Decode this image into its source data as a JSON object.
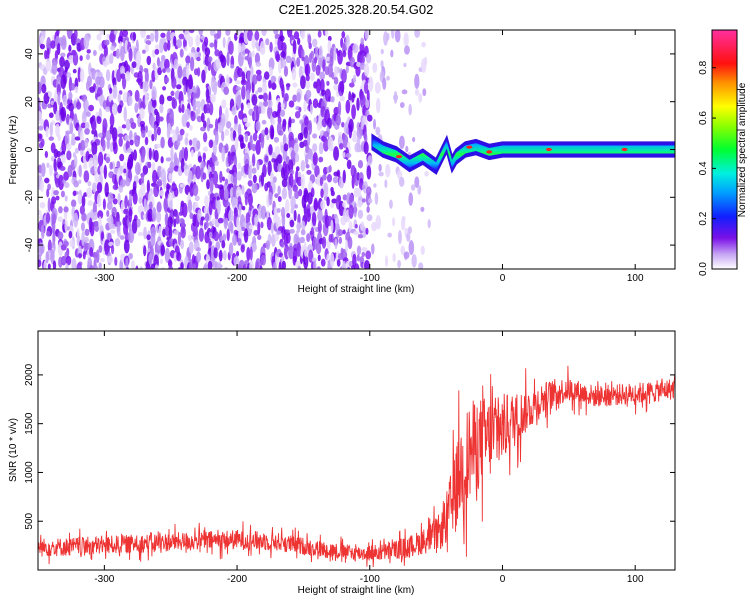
{
  "title": "C2E1.2025.328.20.54.G02",
  "chart_data": [
    {
      "type": "heatmap",
      "xlabel": "Height of straight line (km)",
      "ylabel": "Frequency (Hz)",
      "xlim": [
        -350,
        130
      ],
      "ylim": [
        -50,
        50
      ],
      "xticks": [
        -300,
        -200,
        -100,
        0,
        100
      ],
      "yticks": [
        -40,
        -20,
        0,
        20,
        40
      ],
      "colorbar": {
        "label": "Normalized spectral amplitude",
        "range": [
          0.0,
          0.95
        ],
        "ticks": [
          0.0,
          0.2,
          0.4,
          0.6,
          0.8
        ],
        "tick_labels": [
          "0.0",
          "0.2",
          "0.4",
          "0.6",
          "0.8"
        ]
      },
      "regions": [
        {
          "x_range": [
            -350,
            -100
          ],
          "frequency_range": [
            -50,
            50
          ],
          "amplitude_range": [
            0.0,
            0.15
          ],
          "description_color": "purple speckle"
        },
        {
          "x_range": [
            -100,
            -55
          ],
          "frequency_range": [
            -50,
            50
          ],
          "amplitude_range": [
            0.0,
            0.05
          ],
          "description_color": "faint lavender"
        },
        {
          "x_range": [
            -100,
            130
          ],
          "frequency_center": 0,
          "frequency_halfwidth": 3,
          "amplitude_range": [
            0.15,
            0.9
          ],
          "description_color": "blue-green-red narrow band"
        }
      ],
      "band_path": [
        [
          -98,
          3
        ],
        [
          -90,
          0
        ],
        [
          -80,
          -2
        ],
        [
          -70,
          -6
        ],
        [
          -60,
          -3
        ],
        [
          -50,
          -7
        ],
        [
          -42,
          2
        ],
        [
          -38,
          -6
        ],
        [
          -35,
          -3
        ],
        [
          -28,
          0
        ],
        [
          -20,
          1
        ],
        [
          -10,
          -1
        ],
        [
          0,
          0
        ],
        [
          50,
          0
        ],
        [
          130,
          0
        ]
      ]
    },
    {
      "type": "line",
      "xlabel": "Height of straight line (km)",
      "ylabel": "SNR (10 * v/v)",
      "xlim": [
        -350,
        130
      ],
      "ylim": [
        0,
        2450
      ],
      "xticks": [
        -300,
        -200,
        -100,
        0,
        100
      ],
      "yticks": [
        500,
        1000,
        1500,
        2000
      ],
      "series": [
        {
          "color": "#ee3333",
          "x": [
            -350,
            -320,
            -290,
            -260,
            -230,
            -200,
            -170,
            -140,
            -110,
            -90,
            -70,
            -55,
            -45,
            -38,
            -32,
            -25,
            -18,
            -10,
            -5,
            0,
            10,
            20,
            30,
            40,
            50,
            70,
            90,
            110,
            130
          ],
          "y": [
            230,
            240,
            260,
            280,
            300,
            310,
            290,
            220,
            170,
            180,
            240,
            320,
            420,
            700,
            1000,
            1200,
            1300,
            1350,
            1400,
            1450,
            1550,
            1650,
            1750,
            1820,
            1850,
            1780,
            1800,
            1820,
            1860
          ],
          "noise_amplitude": [
            120,
            120,
            120,
            120,
            120,
            130,
            120,
            110,
            100,
            110,
            140,
            180,
            250,
            450,
            600,
            650,
            600,
            550,
            500,
            450,
            350,
            260,
            220,
            180,
            160,
            140,
            140,
            140,
            140
          ]
        }
      ]
    }
  ]
}
